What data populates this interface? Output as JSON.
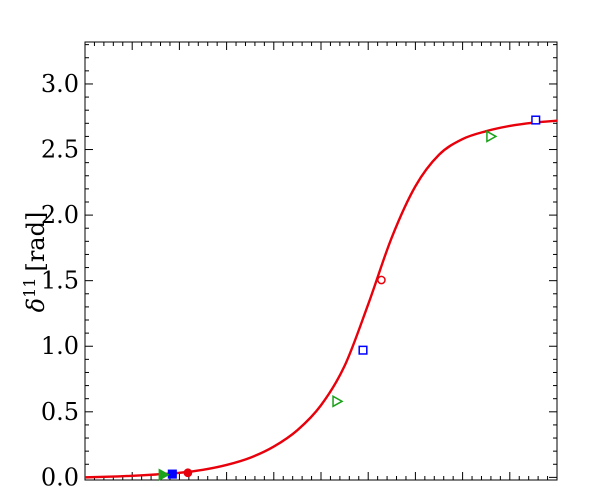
{
  "chart_data": {
    "type": "line",
    "ylabel": "δ",
    "ylabel_superscript": "11",
    "ylabel_unit": "[rad]",
    "ylim": [
      -0.02,
      3.32
    ],
    "xlim": [
      0,
      1
    ],
    "y_ticks": [
      "0.0",
      "0.5",
      "1.0",
      "1.5",
      "2.0",
      "2.5",
      "3.0"
    ],
    "y_tick_values": [
      0.0,
      0.5,
      1.0,
      1.5,
      2.0,
      2.5,
      3.0
    ],
    "x_tick_labels_visible": false,
    "curve_color": "#e8000b",
    "curve": [
      [
        0.0,
        0.0
      ],
      [
        0.05,
        0.005
      ],
      [
        0.1,
        0.012
      ],
      [
        0.15,
        0.022
      ],
      [
        0.2,
        0.035
      ],
      [
        0.25,
        0.058
      ],
      [
        0.3,
        0.095
      ],
      [
        0.35,
        0.15
      ],
      [
        0.4,
        0.235
      ],
      [
        0.45,
        0.36
      ],
      [
        0.5,
        0.55
      ],
      [
        0.55,
        0.85
      ],
      [
        0.6,
        1.32
      ],
      [
        0.65,
        1.83
      ],
      [
        0.7,
        2.22
      ],
      [
        0.75,
        2.46
      ],
      [
        0.8,
        2.58
      ],
      [
        0.85,
        2.64
      ],
      [
        0.9,
        2.68
      ],
      [
        0.95,
        2.705
      ],
      [
        1.0,
        2.72
      ]
    ],
    "series": [
      {
        "marker": "circle",
        "color": "#e8000b",
        "points": [
          {
            "x": 0.218,
            "y": 0.035,
            "filled": true
          },
          {
            "x": 0.628,
            "y": 1.505,
            "filled": false
          }
        ]
      },
      {
        "marker": "square",
        "color": "#0000ff",
        "points": [
          {
            "x": 0.185,
            "y": 0.025,
            "filled": true
          },
          {
            "x": 0.589,
            "y": 0.97,
            "filled": false
          },
          {
            "x": 0.955,
            "y": 2.725,
            "filled": false
          }
        ]
      },
      {
        "marker": "triangle-right",
        "color": "#1aa31a",
        "points": [
          {
            "x": 0.166,
            "y": 0.02,
            "filled": true
          },
          {
            "x": 0.534,
            "y": 0.58,
            "filled": false
          },
          {
            "x": 0.86,
            "y": 2.6,
            "filled": false
          }
        ]
      }
    ],
    "grid": false,
    "legend": "none"
  }
}
